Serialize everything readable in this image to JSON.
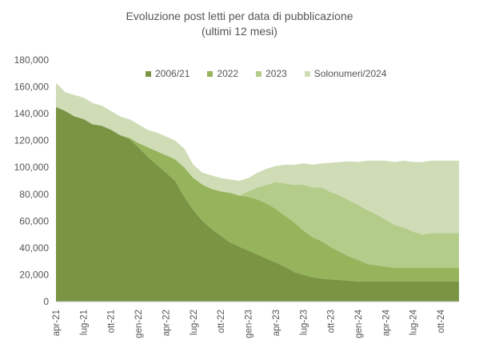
{
  "chart_data": {
    "type": "area",
    "stacked": true,
    "title": "Evoluzione post letti per data di pubblicazione",
    "subtitle": "(ultimi 12 mesi)",
    "xlabel": "",
    "ylabel": "",
    "ylim": [
      0,
      180000
    ],
    "yticks": [
      "0",
      "20,000",
      "40,000",
      "60,000",
      "80,000",
      "100,000",
      "120,000",
      "140,000",
      "160,000",
      "180,000"
    ],
    "x_tick_labels": [
      "apr-21",
      "lug-21",
      "ott-21",
      "gen-22",
      "apr-22",
      "lug-22",
      "ott-22",
      "gen-23",
      "apr-23",
      "lug-23",
      "ott-23",
      "gen-24",
      "apr-24",
      "lug-24",
      "ott-24"
    ],
    "x": [
      "apr-21",
      "mag-21",
      "giu-21",
      "lug-21",
      "ago-21",
      "set-21",
      "ott-21",
      "nov-21",
      "dic-21",
      "gen-22",
      "feb-22",
      "mar-22",
      "apr-22",
      "mag-22",
      "giu-22",
      "lug-22",
      "ago-22",
      "set-22",
      "ott-22",
      "nov-22",
      "dic-22",
      "gen-23",
      "feb-23",
      "mar-23",
      "apr-23",
      "mag-23",
      "giu-23",
      "lug-23",
      "ago-23",
      "set-23",
      "ott-23",
      "nov-23",
      "dic-23",
      "gen-24",
      "feb-24",
      "mar-24",
      "apr-24",
      "mag-24",
      "giu-24",
      "lug-24",
      "ago-24",
      "set-24",
      "ott-24",
      "nov-24",
      "dic-24"
    ],
    "legend_position": "top",
    "series": [
      {
        "name": "2006/21",
        "color": "#7a9444",
        "values": [
          145000,
          142000,
          138000,
          136000,
          132000,
          131000,
          128000,
          124000,
          121000,
          115000,
          108000,
          102000,
          96000,
          90000,
          78000,
          68000,
          60000,
          54000,
          49000,
          44000,
          41000,
          38000,
          35000,
          32000,
          29000,
          26000,
          22000,
          20000,
          18000,
          17000,
          16500,
          16000,
          15500,
          15000,
          15000,
          15000,
          15000,
          15000,
          15000,
          15000,
          15000,
          15000,
          15000,
          15000,
          15000
        ]
      },
      {
        "name": "2022",
        "color": "#96b45c",
        "values": [
          0,
          0,
          0,
          0,
          0,
          0,
          0,
          0,
          1000,
          3000,
          7000,
          10000,
          13000,
          16000,
          22000,
          24000,
          27000,
          30000,
          33000,
          37000,
          38000,
          40000,
          41000,
          41000,
          40000,
          38000,
          37000,
          33000,
          30000,
          28000,
          24000,
          21000,
          18000,
          16000,
          13000,
          12000,
          11000,
          10000,
          10000,
          10000,
          10000,
          10000,
          10000,
          10000,
          10000
        ]
      },
      {
        "name": "2023",
        "color": "#b4cc8a",
        "values": [
          0,
          0,
          0,
          0,
          0,
          0,
          0,
          0,
          0,
          0,
          0,
          0,
          0,
          0,
          0,
          0,
          0,
          0,
          0,
          0,
          0,
          4000,
          9000,
          14000,
          20000,
          24000,
          28000,
          34000,
          37000,
          40000,
          41000,
          42000,
          42000,
          41000,
          40000,
          38000,
          35000,
          32000,
          30000,
          27000,
          25000,
          26000,
          26000,
          26000,
          26000
        ]
      },
      {
        "name": "Solonumeri/2024",
        "color": "#cfdcb6",
        "values": [
          18000,
          14000,
          16000,
          16000,
          16000,
          15000,
          14000,
          14000,
          14000,
          14000,
          13000,
          14000,
          14000,
          14000,
          14000,
          10000,
          9000,
          10000,
          10000,
          10000,
          11000,
          10000,
          11000,
          12000,
          12000,
          14000,
          15000,
          16000,
          17000,
          18000,
          22000,
          25000,
          29000,
          32000,
          37000,
          40000,
          44000,
          47000,
          50000,
          52000,
          54000,
          54000,
          54000,
          54000,
          54000
        ]
      }
    ]
  }
}
